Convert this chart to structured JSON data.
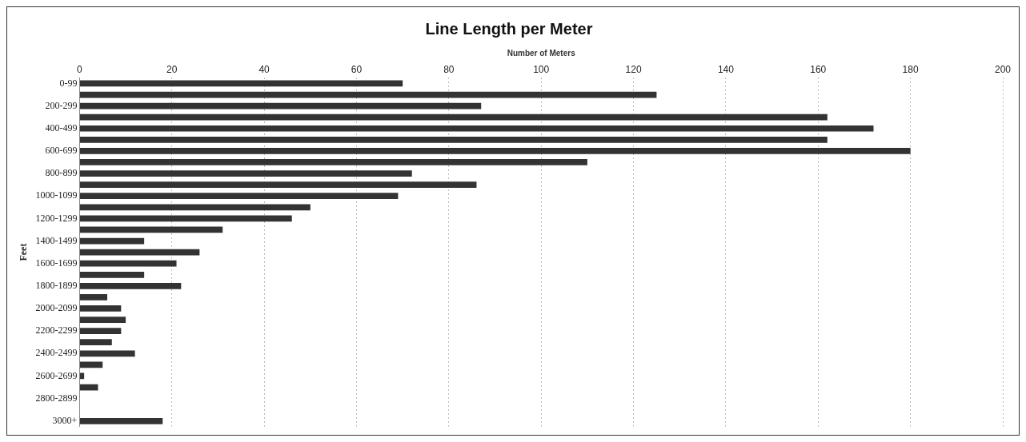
{
  "chart_data": {
    "type": "bar",
    "orientation": "horizontal",
    "title": "Line Length per Meter",
    "xlabel": "Number of Meters",
    "ylabel": "Feet",
    "categories": [
      "0-99",
      null,
      "200-299",
      null,
      "400-499",
      null,
      "600-699",
      null,
      "800-899",
      null,
      "1000-1099",
      null,
      "1200-1299",
      null,
      "1400-1499",
      null,
      "1600-1699",
      null,
      "1800-1899",
      null,
      "2000-2099",
      null,
      "2200-2299",
      null,
      "2400-2499",
      null,
      "2600-2699",
      null,
      "2800-2899",
      null,
      "3000+"
    ],
    "values": [
      70,
      125,
      87,
      162,
      172,
      162,
      180,
      110,
      72,
      86,
      69,
      50,
      46,
      31,
      14,
      26,
      21,
      14,
      22,
      6,
      9,
      10,
      9,
      7,
      12,
      5,
      1,
      4,
      0,
      0,
      18
    ],
    "color": "#333333",
    "xlim": [
      0,
      200
    ],
    "xticks": [
      0,
      20,
      40,
      60,
      80,
      100,
      120,
      140,
      160,
      180,
      200
    ],
    "grid": "x"
  }
}
